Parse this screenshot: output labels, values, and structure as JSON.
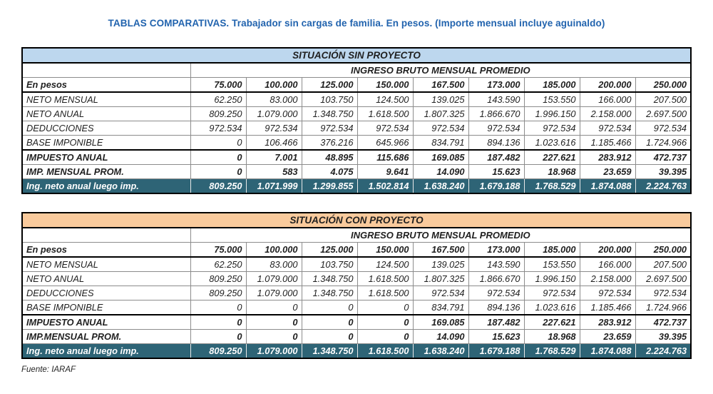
{
  "page": {
    "title": "TABLAS COMPARATIVAS. Trabajador sin cargas de familia. En pesos. (Importe mensual incluye aguinaldo)",
    "source": "Fuente: IARAF"
  },
  "colors": {
    "title_blue": "#2163AE",
    "band_sin_proyecto": "#BDD7EE",
    "band_con_proyecto": "#F9CA9C",
    "total_row_teal": "#2E6476"
  },
  "tables": [
    {
      "id": "sin-proyecto",
      "band_label": "SITUACIÓN SIN PROYECTO",
      "band_color": "#BDD7EE",
      "subheader": "INGRESO BRUTO MENSUAL PROMEDIO",
      "header_label": "En pesos",
      "columns": [
        "75.000",
        "100.000",
        "125.000",
        "150.000",
        "167.500",
        "173.000",
        "185.000",
        "200.000",
        "250.000"
      ],
      "rows": [
        {
          "label": "NETO MENSUAL",
          "style": "normal",
          "rule_above": false,
          "values": [
            "62.250",
            "83.000",
            "103.750",
            "124.500",
            "139.025",
            "143.590",
            "153.550",
            "166.000",
            "207.500"
          ]
        },
        {
          "label": "NETO ANUAL",
          "style": "normal",
          "rule_above": false,
          "values": [
            "809.250",
            "1.079.000",
            "1.348.750",
            "1.618.500",
            "1.807.325",
            "1.866.670",
            "1.996.150",
            "2.158.000",
            "2.697.500"
          ]
        },
        {
          "label": "DEDUCCIONES",
          "style": "normal",
          "rule_above": false,
          "values": [
            "972.534",
            "972.534",
            "972.534",
            "972.534",
            "972.534",
            "972.534",
            "972.534",
            "972.534",
            "972.534"
          ]
        },
        {
          "label": "BASE IMPONIBLE",
          "style": "normal",
          "rule_above": false,
          "values": [
            "0",
            "106.466",
            "376.216",
            "645.966",
            "834.791",
            "894.136",
            "1.023.616",
            "1.185.466",
            "1.724.966"
          ]
        },
        {
          "label": "IMPUESTO ANUAL",
          "style": "bold",
          "rule_above": true,
          "values": [
            "0",
            "7.001",
            "48.895",
            "115.686",
            "169.085",
            "187.482",
            "227.621",
            "283.912",
            "472.737"
          ]
        },
        {
          "label": "IMP. MENSUAL PROM.",
          "style": "bold",
          "rule_above": false,
          "values": [
            "0",
            "583",
            "4.075",
            "9.641",
            "14.090",
            "15.623",
            "18.968",
            "23.659",
            "39.395"
          ]
        },
        {
          "label": "Ing. neto anual luego imp.",
          "style": "total",
          "rule_above": false,
          "values": [
            "809.250",
            "1.071.999",
            "1.299.855",
            "1.502.814",
            "1.638.240",
            "1.679.188",
            "1.768.529",
            "1.874.088",
            "2.224.763"
          ]
        }
      ]
    },
    {
      "id": "con-proyecto",
      "band_label": "SITUACIÓN CON PROYECTO",
      "band_color": "#F9CA9C",
      "subheader": "INGRESO BRUTO MENSUAL PROMEDIO",
      "header_label": "En pesos",
      "columns": [
        "75.000",
        "100.000",
        "125.000",
        "150.000",
        "167.500",
        "173.000",
        "185.000",
        "200.000",
        "250.000"
      ],
      "rows": [
        {
          "label": "NETO MENSUAL",
          "style": "normal",
          "rule_above": false,
          "values": [
            "62.250",
            "83.000",
            "103.750",
            "124.500",
            "139.025",
            "143.590",
            "153.550",
            "166.000",
            "207.500"
          ]
        },
        {
          "label": "NETO ANUAL",
          "style": "normal",
          "rule_above": false,
          "values": [
            "809.250",
            "1.079.000",
            "1.348.750",
            "1.618.500",
            "1.807.325",
            "1.866.670",
            "1.996.150",
            "2.158.000",
            "2.697.500"
          ]
        },
        {
          "label": "DEDUCCIONES",
          "style": "normal",
          "rule_above": false,
          "values": [
            "809.250",
            "1.079.000",
            "1.348.750",
            "1.618.500",
            "972.534",
            "972.534",
            "972.534",
            "972.534",
            "972.534"
          ]
        },
        {
          "label": "BASE IMPONIBLE",
          "style": "normal",
          "rule_above": false,
          "values": [
            "0",
            "0",
            "0",
            "0",
            "834.791",
            "894.136",
            "1.023.616",
            "1.185.466",
            "1.724.966"
          ]
        },
        {
          "label": "IMPUESTO ANUAL",
          "style": "bold",
          "rule_above": true,
          "values": [
            "0",
            "0",
            "0",
            "0",
            "169.085",
            "187.482",
            "227.621",
            "283.912",
            "472.737"
          ]
        },
        {
          "label": "IMP.MENSUAL PROM.",
          "style": "bold",
          "rule_above": false,
          "values": [
            "0",
            "0",
            "0",
            "0",
            "14.090",
            "15.623",
            "18.968",
            "23.659",
            "39.395"
          ]
        },
        {
          "label": "Ing. neto anual luego imp.",
          "style": "total",
          "rule_above": false,
          "values": [
            "809.250",
            "1.079.000",
            "1.348.750",
            "1.618.500",
            "1.638.240",
            "1.679.188",
            "1.768.529",
            "1.874.088",
            "2.224.763"
          ]
        }
      ]
    }
  ]
}
